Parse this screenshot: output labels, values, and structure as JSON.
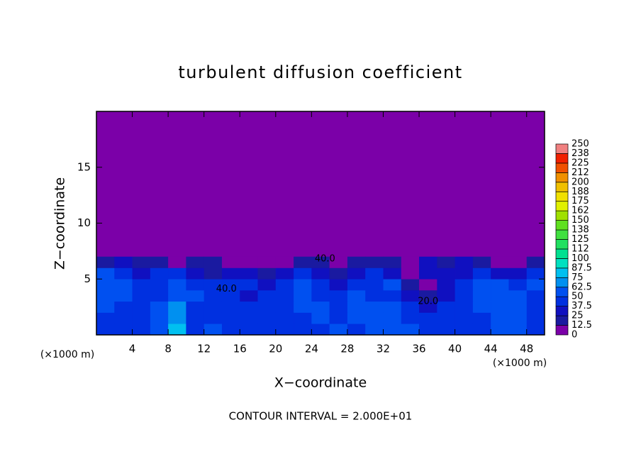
{
  "chart_data": {
    "type": "contour",
    "title": "turbulent diffusion coefficient",
    "xlabel": "X−coordinate",
    "ylabel": "Z−coordinate",
    "xunit": "(×1000 m)",
    "footer": "CONTOUR INTERVAL = 2.000E+01",
    "xlim": [
      0,
      50
    ],
    "ylim": [
      0,
      20
    ],
    "xticks": [
      4,
      8,
      12,
      16,
      20,
      24,
      28,
      32,
      36,
      40,
      44,
      48
    ],
    "yticks": [
      5,
      10,
      15
    ],
    "background": "#7b00a8",
    "field": {
      "x": [
        1,
        3,
        5,
        7,
        9,
        11,
        13,
        15,
        17,
        19,
        21,
        23,
        25,
        27,
        29,
        31,
        33,
        35,
        37,
        39,
        41,
        43,
        45,
        47,
        49
      ],
      "z": [
        0.5,
        1.5,
        2.5,
        3.5,
        4.5,
        5.5,
        6.5
      ],
      "values": [
        [
          40,
          45,
          40,
          55,
          80,
          45,
          50,
          45,
          45,
          40,
          45,
          40,
          45,
          50,
          45,
          55,
          60,
          50,
          45,
          40,
          45,
          40,
          50,
          50,
          45
        ],
        [
          45,
          40,
          45,
          60,
          70,
          40,
          45,
          40,
          40,
          45,
          40,
          45,
          55,
          45,
          50,
          60,
          55,
          45,
          40,
          45,
          40,
          45,
          55,
          50,
          45
        ],
        [
          50,
          45,
          40,
          50,
          65,
          45,
          40,
          45,
          40,
          40,
          45,
          50,
          50,
          45,
          55,
          55,
          50,
          40,
          35,
          40,
          45,
          50,
          60,
          55,
          45
        ],
        [
          55,
          50,
          45,
          45,
          60,
          50,
          45,
          40,
          35,
          40,
          45,
          55,
          45,
          40,
          50,
          45,
          40,
          30,
          20,
          35,
          45,
          55,
          55,
          50,
          45
        ],
        [
          60,
          55,
          40,
          45,
          55,
          45,
          40,
          45,
          40,
          35,
          40,
          60,
          40,
          25,
          40,
          45,
          50,
          15,
          10,
          30,
          40,
          50,
          50,
          45,
          50
        ],
        [
          55,
          45,
          35,
          40,
          40,
          30,
          20,
          30,
          25,
          20,
          35,
          45,
          30,
          15,
          30,
          40,
          35,
          10,
          30,
          25,
          35,
          40,
          35,
          30,
          40
        ],
        [
          20,
          25,
          20,
          15,
          10,
          15,
          20,
          10,
          5,
          5,
          10,
          20,
          15,
          10,
          15,
          20,
          20,
          5,
          25,
          20,
          25,
          15,
          10,
          10,
          15
        ]
      ]
    },
    "contour_labels": [
      {
        "text": "40.0",
        "x": 14.5,
        "z": 4.1
      },
      {
        "text": "40.0",
        "x": 25.5,
        "z": 6.8
      },
      {
        "text": "20.0",
        "x": 37,
        "z": 3.0
      }
    ],
    "colorbar": {
      "ticks": [
        0,
        12.5,
        25,
        37.5,
        50,
        62.5,
        75,
        87.5,
        100,
        {
          "value": 112.5,
          "label": "112"
        },
        125,
        {
          "value": 137.5,
          "label": "138"
        },
        150,
        {
          "value": 162.5,
          "label": "162"
        },
        175,
        {
          "value": 187.5,
          "label": "188"
        },
        200,
        {
          "value": 212.5,
          "label": "212"
        },
        225,
        {
          "value": 237.5,
          "label": "238"
        },
        250
      ],
      "colors": [
        "#7b00a8",
        "#1a1aa0",
        "#1010c0",
        "#0030e0",
        "#0050f0",
        "#0090f0",
        "#00c0f0",
        "#00e0c0",
        "#00e090",
        "#20e060",
        "#40e040",
        "#60e020",
        "#a0e000",
        "#e0f000",
        "#f0e000",
        "#f0c000",
        "#f09000",
        "#f05000",
        "#f02000",
        "#f08080"
      ]
    }
  }
}
